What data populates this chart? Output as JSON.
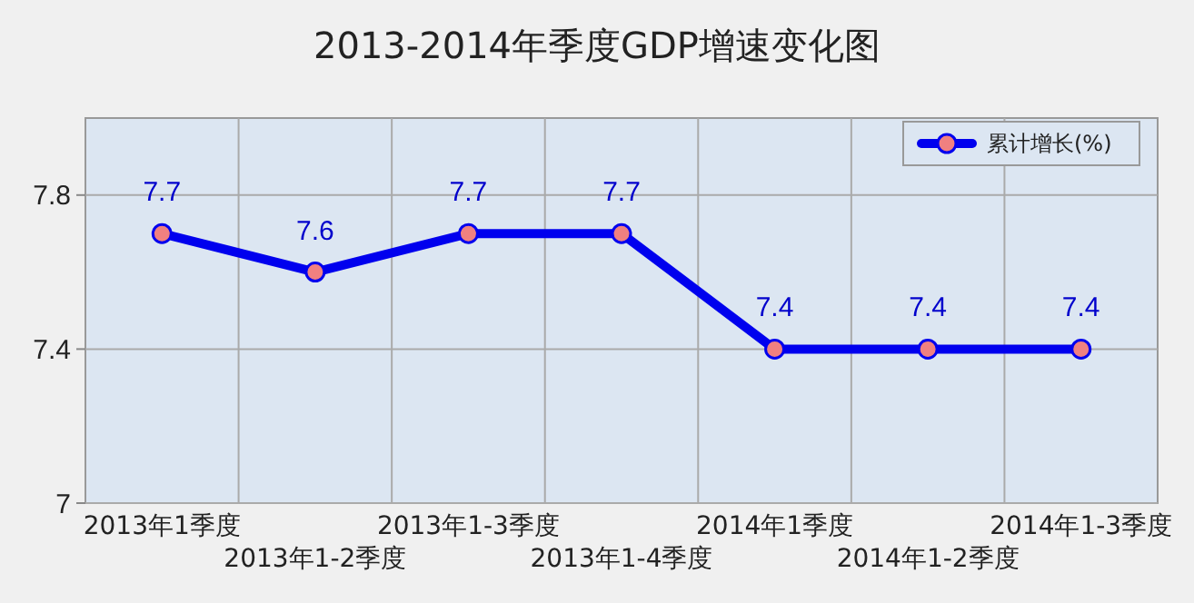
{
  "chart_data": {
    "type": "line",
    "title": "2013-2014年季度GDP增速变化图",
    "categories": [
      "2013年1季度",
      "2013年1-2季度",
      "2013年1-3季度",
      "2013年1-4季度",
      "2014年1季度",
      "2014年1-2季度",
      "2014年1-3季度"
    ],
    "series": [
      {
        "name": "累计增长(%)",
        "color": "#0000ee",
        "values": [
          7.7,
          7.6,
          7.7,
          7.7,
          7.4,
          7.4,
          7.4
        ]
      }
    ],
    "ylim": [
      7,
      8
    ],
    "yticks": [
      7,
      7.4,
      7.8
    ],
    "grid": true,
    "legend": "top right",
    "marker": "circle",
    "data_labels": true
  }
}
